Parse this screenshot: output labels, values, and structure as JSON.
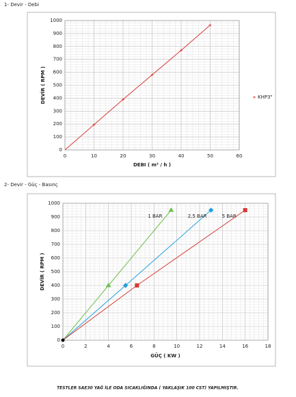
{
  "chart_data": [
    {
      "type": "line",
      "title": "1- Devir - Debi",
      "x_label": "DEBI ( m³ / h )",
      "y_label": "DEVİR ( RPM )",
      "xlim": [
        0,
        60
      ],
      "xticks": [
        0,
        10,
        20,
        30,
        40,
        50,
        60
      ],
      "ylim": [
        0,
        1000
      ],
      "yticks": [
        0,
        100,
        200,
        300,
        400,
        500,
        600,
        700,
        800,
        900,
        1000
      ],
      "grid": true,
      "legend": "right",
      "series": [
        {
          "name": "KHP3\"",
          "color": "#d63a33",
          "marker": "plus",
          "x": [
            0,
            10,
            20,
            30,
            40,
            50
          ],
          "values": [
            0,
            195,
            390,
            580,
            770,
            965
          ]
        }
      ]
    },
    {
      "type": "line",
      "title": "2- Devir - Güç - Basınç",
      "x_label": "GÜÇ ( KW )",
      "y_label": "DEVİR ( RPM )",
      "xlim": [
        0,
        18
      ],
      "xticks": [
        0,
        2,
        4,
        6,
        8,
        10,
        12,
        14,
        16,
        18
      ],
      "ylim": [
        0,
        1000
      ],
      "yticks": [
        0,
        100,
        200,
        300,
        400,
        500,
        600,
        700,
        800,
        900,
        1000
      ],
      "grid": true,
      "legend": "inline",
      "series": [
        {
          "name": "1 BAR",
          "color": "#6cc04a",
          "marker": "triangle",
          "x": [
            0,
            4,
            9.5
          ],
          "values": [
            0,
            400,
            950
          ]
        },
        {
          "name": "2,5 BAR",
          "color": "#1ea1df",
          "marker": "diamond",
          "x": [
            0,
            5.5,
            13
          ],
          "values": [
            0,
            400,
            950
          ]
        },
        {
          "name": "5 BAR",
          "color": "#d63a33",
          "marker": "square",
          "x": [
            0,
            6.5,
            16
          ],
          "values": [
            0,
            400,
            950
          ]
        }
      ]
    }
  ],
  "note": "TESTLER SAE30 YAĞ İLE ODA SICAKLIĞINDA ( YAKLAŞIK 100 CST) YAPILMIŞTIR."
}
